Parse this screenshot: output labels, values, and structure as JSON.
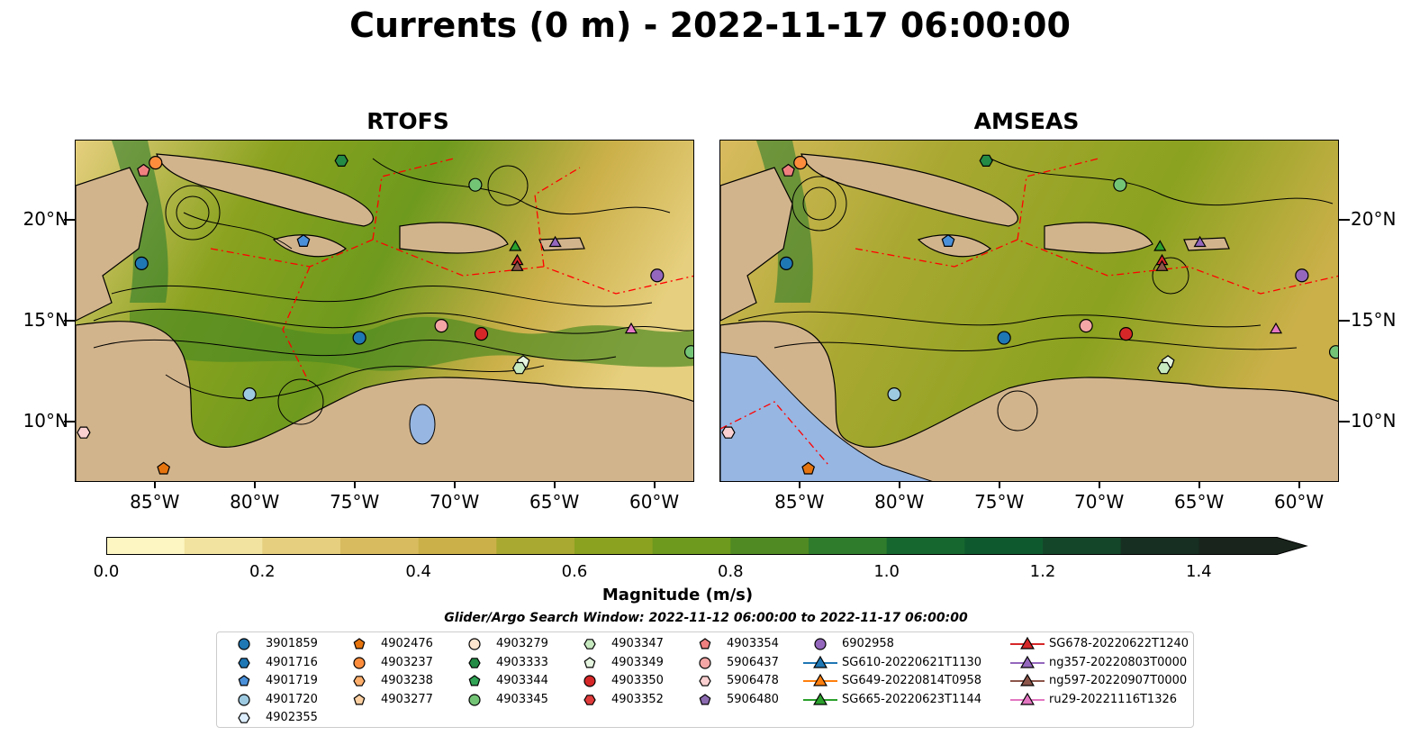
{
  "title": "Currents (0 m) - 2022-11-17 06:00:00",
  "panels": [
    {
      "title": "RTOFS"
    },
    {
      "title": "AMSEAS"
    }
  ],
  "axes": {
    "lon_labels": [
      "85°W",
      "80°W",
      "75°W",
      "70°W",
      "65°W",
      "60°W"
    ],
    "lat_labels": [
      "20°N",
      "15°N",
      "10°N"
    ],
    "lon_range": [
      -89,
      -58
    ],
    "lat_range": [
      7,
      24
    ]
  },
  "colorbar": {
    "label": "Magnitude (m/s)",
    "range": [
      0.0,
      1.5
    ],
    "ticks": [
      "0.0",
      "0.2",
      "0.4",
      "0.6",
      "0.8",
      "1.0",
      "1.2",
      "1.4"
    ],
    "colors": [
      "#fdf6c3",
      "#f2e3a0",
      "#e6cf7e",
      "#d9bb5f",
      "#cbb049",
      "#a9a831",
      "#8aa21f",
      "#6e9a1d",
      "#4f8a22",
      "#2f7d2c",
      "#16672f",
      "#0e5a2e",
      "#14472a",
      "#172f22",
      "#19251c"
    ],
    "extend": "max"
  },
  "search_window": "Glider/Argo Search Window: 2022-11-12 06:00:00 to 2022-11-17 06:00:00",
  "colors": {
    "land": "#d2b48c",
    "ocean_gap": "#97b6e1",
    "boundary": "#ff0000"
  },
  "legend": [
    {
      "label": "3901859",
      "marker": "circle",
      "color": "#1f77b4"
    },
    {
      "label": "4901716",
      "marker": "hexagon",
      "color": "#1f77b4"
    },
    {
      "label": "4901719",
      "marker": "pentagon",
      "color": "#4a90d9"
    },
    {
      "label": "4901720",
      "marker": "circle",
      "color": "#9ecae1"
    },
    {
      "label": "4902355",
      "marker": "hexagon",
      "color": "#ddeeff"
    },
    {
      "label": "4902476",
      "marker": "pentagon",
      "color": "#e6740e"
    },
    {
      "label": "4903237",
      "marker": "circle",
      "color": "#fd8d3c"
    },
    {
      "label": "4903238",
      "marker": "hexagon",
      "color": "#fdae6b"
    },
    {
      "label": "4903277",
      "marker": "pentagon",
      "color": "#fdd0a2"
    },
    {
      "label": "4903279",
      "marker": "circle",
      "color": "#fee6ce"
    },
    {
      "label": "4903333",
      "marker": "hexagon",
      "color": "#238b45"
    },
    {
      "label": "4903344",
      "marker": "pentagon",
      "color": "#31a354"
    },
    {
      "label": "4903345",
      "marker": "circle",
      "color": "#74c476"
    },
    {
      "label": "4903347",
      "marker": "hexagon",
      "color": "#c7e9c0"
    },
    {
      "label": "4903349",
      "marker": "pentagon",
      "color": "#e5f5e0"
    },
    {
      "label": "4903350",
      "marker": "circle",
      "color": "#d62728"
    },
    {
      "label": "4903352",
      "marker": "hexagon",
      "color": "#e03b3b"
    },
    {
      "label": "4903354",
      "marker": "pentagon",
      "color": "#f08080"
    },
    {
      "label": "5906437",
      "marker": "circle",
      "color": "#f4a5a5"
    },
    {
      "label": "5906478",
      "marker": "hexagon",
      "color": "#fbd0d0"
    },
    {
      "label": "5906480",
      "marker": "pentagon",
      "color": "#8c6bb1"
    },
    {
      "label": "6902958",
      "marker": "circle",
      "color": "#9467bd"
    },
    {
      "label": "SG610-20220621T1130",
      "marker": "triangle-line",
      "color": "#1f77b4"
    },
    {
      "label": "SG649-20220814T0958",
      "marker": "triangle-line",
      "color": "#ff7f0e"
    },
    {
      "label": "SG665-20220623T1144",
      "marker": "triangle-line",
      "color": "#2ca02c"
    },
    {
      "label": "SG678-20220622T1240",
      "marker": "triangle-line",
      "color": "#d62728"
    },
    {
      "label": "ng357-20220803T0000",
      "marker": "triangle-line",
      "color": "#9467bd"
    },
    {
      "label": "ng597-20220907T0000",
      "marker": "triangle-line",
      "color": "#8c564b"
    },
    {
      "label": "ru29-20221116T1326",
      "marker": "triangle-line",
      "color": "#e377c2"
    }
  ],
  "observations": [
    {
      "id": "4903354",
      "lon": -85.6,
      "lat": 22.5
    },
    {
      "id": "4903237",
      "lon": -85.0,
      "lat": 22.9
    },
    {
      "id": "4903333",
      "lon": -75.7,
      "lat": 23.0
    },
    {
      "id": "4903345",
      "lon": -69.0,
      "lat": 21.8
    },
    {
      "id": "4901719",
      "lon": -77.6,
      "lat": 19.0
    },
    {
      "id": "3901859",
      "lon": -85.7,
      "lat": 17.9
    },
    {
      "id": "SG665-20220623T1144",
      "lon": -67.0,
      "lat": 18.7
    },
    {
      "id": "ng357-20220803T0000",
      "lon": -65.0,
      "lat": 18.9
    },
    {
      "id": "SG678-20220622T1240",
      "lon": -66.9,
      "lat": 18.0
    },
    {
      "id": "ng597-20220907T0000",
      "lon": -66.9,
      "lat": 17.7
    },
    {
      "id": "6902958",
      "lon": -59.9,
      "lat": 17.3
    },
    {
      "id": "3901859",
      "lon": -74.8,
      "lat": 14.2
    },
    {
      "id": "5906437",
      "lon": -70.7,
      "lat": 14.8
    },
    {
      "id": "4903350",
      "lon": -68.7,
      "lat": 14.4
    },
    {
      "id": "ru29-20221116T1326",
      "lon": -61.2,
      "lat": 14.6
    },
    {
      "id": "4903349",
      "lon": -66.6,
      "lat": 13.0
    },
    {
      "id": "4903347",
      "lon": -66.8,
      "lat": 12.7
    },
    {
      "id": "4903345",
      "lon": -58.2,
      "lat": 13.5
    },
    {
      "id": "4901720",
      "lon": -80.3,
      "lat": 11.4
    },
    {
      "id": "5906478",
      "lon": -88.6,
      "lat": 9.5
    },
    {
      "id": "4902476",
      "lon": -84.6,
      "lat": 7.7
    }
  ]
}
